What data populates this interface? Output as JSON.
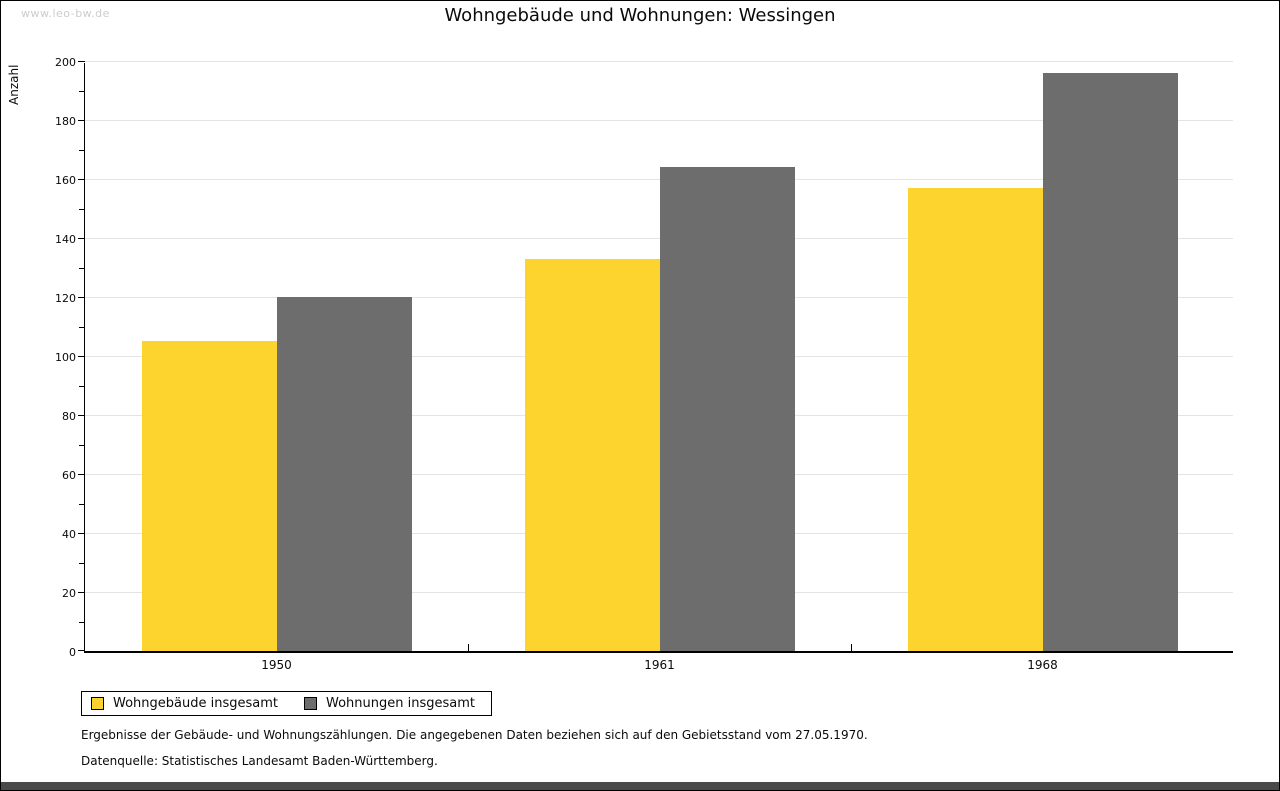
{
  "watermark": "www.leo-bw.de",
  "chart_data": {
    "type": "bar",
    "title": "Wohngebäude und Wohnungen: Wessingen",
    "categories": [
      "1950",
      "1961",
      "1968"
    ],
    "series": [
      {
        "name": "Wohngebäude insgesamt",
        "color": "#FCD42D",
        "values": [
          105,
          133,
          157
        ]
      },
      {
        "name": "Wohnungen insgesamt",
        "color": "#6D6D6D",
        "values": [
          120,
          164,
          196
        ]
      }
    ],
    "xlabel": "",
    "ylabel": "Anzahl",
    "ylim": [
      0,
      200
    ],
    "y_major_step": 20,
    "y_minor_step": 10,
    "grid": true,
    "legend_position": "bottom-left"
  },
  "footer": {
    "line1": "Ergebnisse der Gebäude- und Wohnungszählungen. Die angegebenen Daten beziehen sich auf den Gebietsstand vom 27.05.1970.",
    "line2": "Datenquelle: Statistisches Landesamt Baden-Württemberg."
  },
  "colors": {
    "gridline": "#E4E4E4",
    "axis": "#000000",
    "watermark": "#CCCCCC",
    "bottom_bar": "#4A4A4A",
    "background": "#FFFFFF"
  }
}
